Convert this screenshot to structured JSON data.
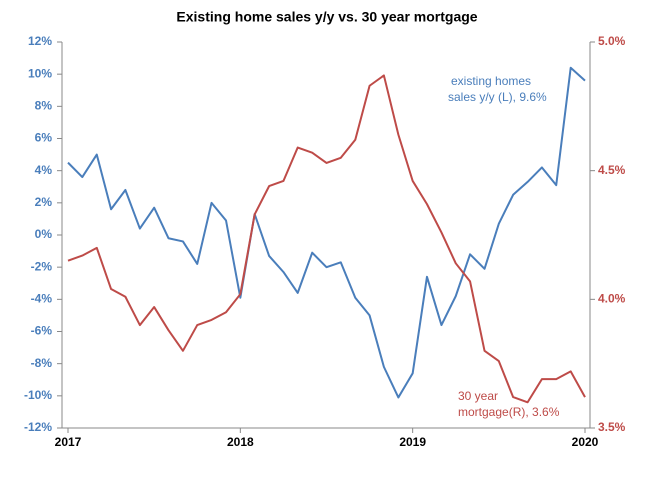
{
  "chart_data": {
    "type": "line",
    "title": "Existing home sales y/y vs. 30 year mortgage",
    "x": [
      2017,
      2017.083,
      2017.167,
      2017.25,
      2017.333,
      2017.417,
      2017.5,
      2017.583,
      2017.667,
      2017.75,
      2017.833,
      2017.917,
      2018,
      2018.083,
      2018.167,
      2018.25,
      2018.333,
      2018.417,
      2018.5,
      2018.583,
      2018.667,
      2018.75,
      2018.833,
      2018.917,
      2019,
      2019.083,
      2019.167,
      2019.25,
      2019.333,
      2019.417,
      2019.5,
      2019.583,
      2019.667,
      2019.75,
      2019.833,
      2019.917,
      2020
    ],
    "xlim": [
      2017,
      2020
    ],
    "xticks": [
      2017,
      2018,
      2019,
      2020
    ],
    "ylim": [
      -12,
      12
    ],
    "yticks": [
      {
        "value": -12,
        "label": "-12%"
      },
      {
        "value": -10,
        "label": "-10%"
      },
      {
        "value": -8,
        "label": "-8%"
      },
      {
        "value": -6,
        "label": "-6%"
      },
      {
        "value": -4,
        "label": "-4%"
      },
      {
        "value": -2,
        "label": "-2%"
      },
      {
        "value": 0,
        "label": "0%"
      },
      {
        "value": 2,
        "label": "2%"
      },
      {
        "value": 4,
        "label": "4%"
      },
      {
        "value": 6,
        "label": "6%"
      },
      {
        "value": 8,
        "label": "8%"
      },
      {
        "value": 10,
        "label": "10%"
      },
      {
        "value": 12,
        "label": "12%"
      }
    ],
    "y2lim": [
      3.5,
      5.0
    ],
    "y2ticks": [
      {
        "value": 3.5,
        "label": "3.5%"
      },
      {
        "value": 4.0,
        "label": "4.0%"
      },
      {
        "value": 4.5,
        "label": "4.5%"
      },
      {
        "value": 5.0,
        "label": "5.0%"
      }
    ],
    "grid": false,
    "series": [
      {
        "color": "#4a7ebb",
        "axis": "y",
        "label_lines": [
          "existing homes",
          "sales y/y (L), 9.6%"
        ],
        "values": [
          4.5,
          3.6,
          5.0,
          1.6,
          2.8,
          0.4,
          1.7,
          -0.2,
          -0.4,
          -1.8,
          2.0,
          0.9,
          -3.9,
          1.3,
          -1.3,
          -2.3,
          -3.6,
          -1.1,
          -2.0,
          -1.7,
          -3.9,
          -5.0,
          -8.2,
          -10.1,
          -8.6,
          -2.6,
          -5.6,
          -3.8,
          -1.2,
          -2.1,
          0.7,
          2.5,
          3.3,
          4.2,
          3.1,
          10.4,
          9.6
        ]
      },
      {
        "color": "#be4b48",
        "axis": "y2",
        "label_lines": [
          "30 year",
          "mortgage(R), 3.6%"
        ],
        "values": [
          4.15,
          4.17,
          4.2,
          4.04,
          4.01,
          3.9,
          3.97,
          3.88,
          3.8,
          3.9,
          3.92,
          3.95,
          4.02,
          4.33,
          4.44,
          4.46,
          4.59,
          4.57,
          4.53,
          4.55,
          4.62,
          4.83,
          4.87,
          4.64,
          4.46,
          4.37,
          4.26,
          4.14,
          4.07,
          3.8,
          3.76,
          3.62,
          3.6,
          3.69,
          3.69,
          3.72,
          3.62
        ]
      }
    ]
  }
}
